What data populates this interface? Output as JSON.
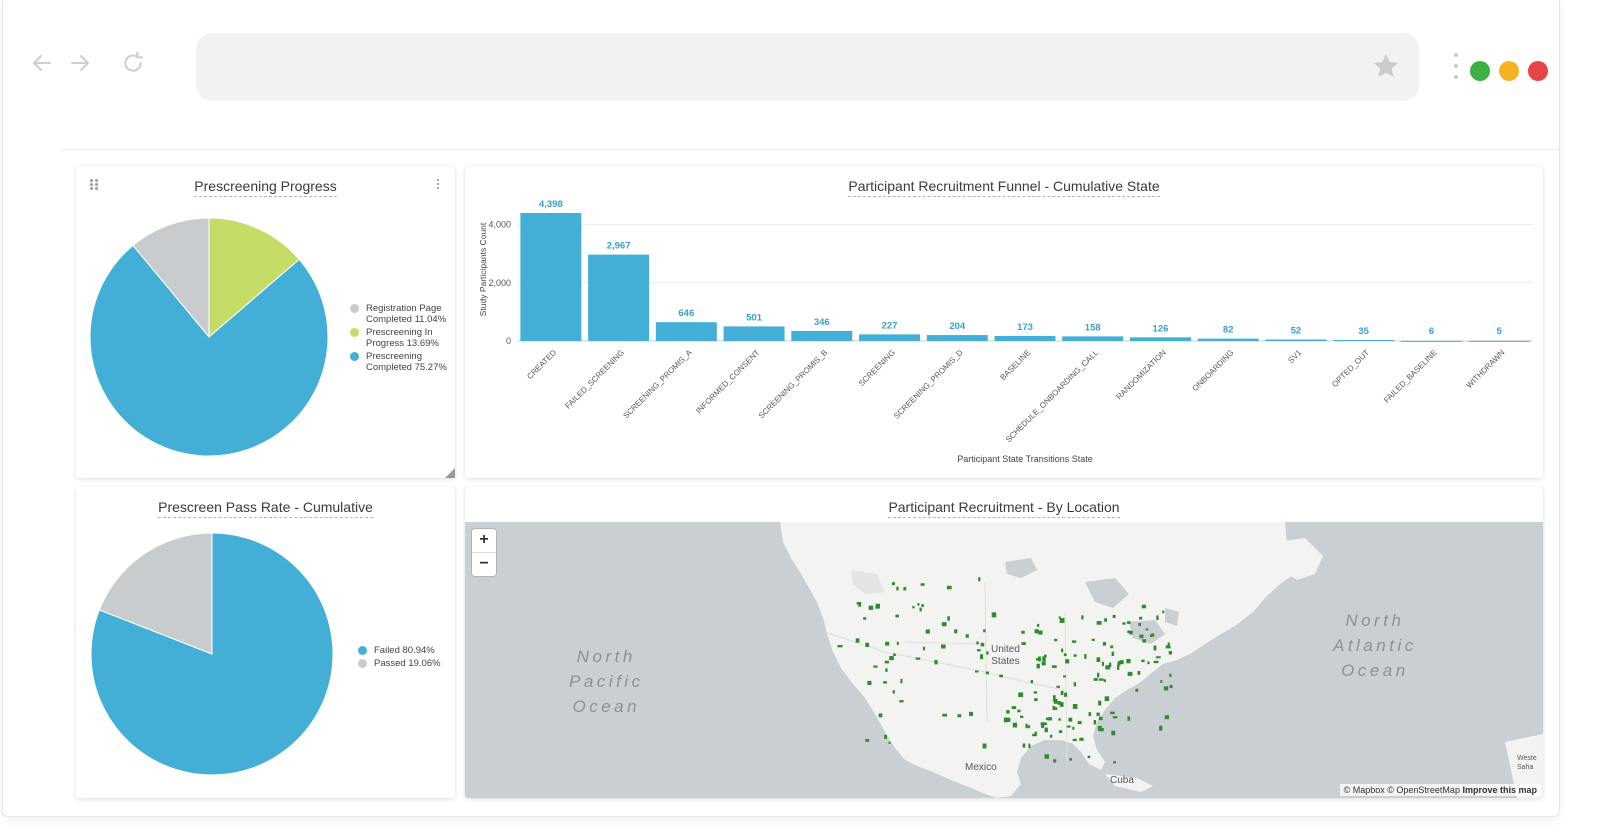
{
  "browser": {
    "back_icon": "arrow-left-icon",
    "forward_icon": "arrow-right-icon",
    "reload_icon": "reload-icon",
    "bookmark_icon": "star-icon",
    "menu_icon": "kebab-menu-icon",
    "window_controls": [
      "#3cb043",
      "#f5b323",
      "#e84545"
    ]
  },
  "panels": {
    "prescreening_progress": {
      "title": "Prescreening Progress"
    },
    "recruitment_funnel": {
      "title": "Participant Recruitment Funnel - Cumulative State"
    },
    "pass_rate": {
      "title": "Prescreen Pass Rate - Cumulative"
    },
    "by_location": {
      "title": "Participant Recruitment - By Location"
    }
  },
  "chart_data": [
    {
      "type": "pie",
      "title": "Prescreening Progress",
      "slices": [
        {
          "label": "Registration Page Completed",
          "value": 11.04,
          "color": "#c8ccce"
        },
        {
          "label": "Prescreening In Progress",
          "value": 13.69,
          "color": "#c5dd66"
        },
        {
          "label": "Prescreening Completed",
          "value": 75.27,
          "color": "#43afd6"
        }
      ],
      "legend_lines": [
        [
          "Registration Page",
          "Completed 11.04%"
        ],
        [
          "Prescreening In",
          "Progress 13.69%"
        ],
        [
          "Prescreening",
          "Completed 75.27%"
        ]
      ],
      "legend_position": "right"
    },
    {
      "type": "bar",
      "title": "Participant Recruitment Funnel - Cumulative State",
      "xlabel": "Participant State Transitions State",
      "ylabel": "Study Participants Count",
      "ylim": [
        0,
        4500
      ],
      "yticks": [
        0,
        2000,
        4000
      ],
      "ytick_labels": [
        "0",
        "2,000",
        "4,000"
      ],
      "grid": true,
      "color": "#43afd6",
      "categories": [
        "CREATED",
        "FAILED_SCREENING",
        "SCREENING_PROMIS_A",
        "INFORMED_CONSENT",
        "SCREENING_PROMIS_B",
        "SCREENING",
        "SCREENING_PROMIS_D",
        "BASELINE",
        "SCHEDULE_ONBOARDING_CALL",
        "RANDOMIZATION",
        "ONBOARDING",
        "SV1",
        "OPTED_OUT",
        "FAILED_BASELINE",
        "WITHDRAWN"
      ],
      "values": [
        4398,
        2967,
        646,
        501,
        346,
        227,
        204,
        173,
        158,
        126,
        82,
        52,
        35,
        6,
        5
      ],
      "value_labels": [
        "4,398",
        "2,967",
        "646",
        "501",
        "346",
        "227",
        "204",
        "173",
        "158",
        "126",
        "82",
        "52",
        "35",
        "6",
        "5"
      ]
    },
    {
      "type": "pie",
      "title": "Prescreen Pass Rate - Cumulative",
      "slices": [
        {
          "label": "Failed",
          "value": 80.94,
          "color": "#43afd6"
        },
        {
          "label": "Passed",
          "value": 19.06,
          "color": "#c8ccce"
        }
      ],
      "legend_lines": [
        [
          "Failed 80.94%"
        ],
        [
          "Passed 19.06%"
        ]
      ],
      "legend_position": "right"
    }
  ],
  "map": {
    "zoom_in": "+",
    "zoom_out": "−",
    "oceans": [
      {
        "lines": [
          "North",
          "Pacific",
          "Ocean"
        ]
      },
      {
        "lines": [
          "North",
          "Atlantic",
          "Ocean"
        ]
      }
    ],
    "places": {
      "usa": [
        "United",
        "States"
      ],
      "mexico": "Mexico",
      "cuba": "Cuba",
      "partial": [
        "Weste",
        "Saha"
      ]
    },
    "attribution": "© Mapbox © OpenStreetMap",
    "improve_link": "Improve this map",
    "marker_color": "#2e8b2e"
  }
}
